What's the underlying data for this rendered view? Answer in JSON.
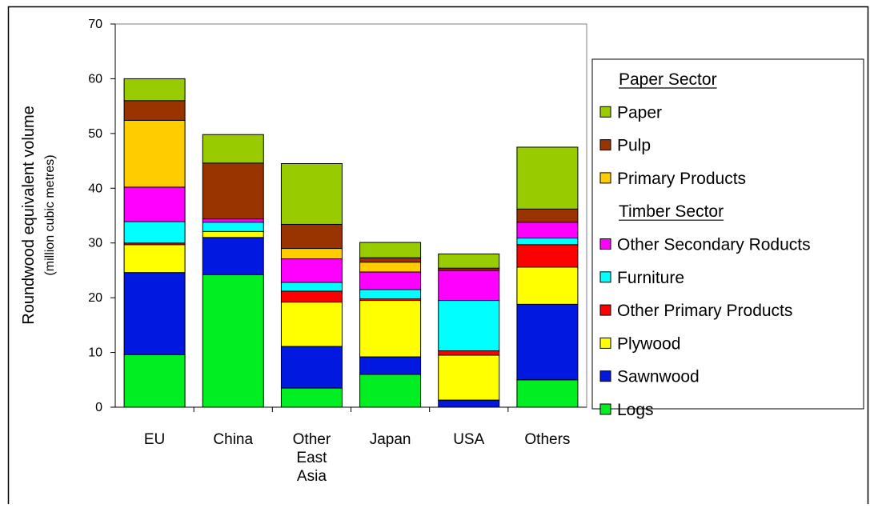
{
  "chart_data": {
    "type": "bar",
    "stacked": true,
    "categories": [
      [
        "EU"
      ],
      [
        "China"
      ],
      [
        "Other",
        "East",
        "Asia"
      ],
      [
        "Japan"
      ],
      [
        "USA"
      ],
      [
        "Others"
      ]
    ],
    "ylabel": "Roundwood equivalent volume",
    "ylabel_sub": "(million cubic metres)",
    "ylim": [
      0,
      70
    ],
    "yticks": [
      0,
      10,
      20,
      30,
      40,
      50,
      60,
      70
    ],
    "grid": false,
    "legend_position": "right",
    "series": [
      {
        "name": "Logs",
        "color": "#00ee22",
        "values": [
          9.6,
          24.2,
          3.5,
          6.0,
          0.0,
          5.0
        ]
      },
      {
        "name": "Sawnwood",
        "color": "#0018e0",
        "values": [
          15.0,
          6.8,
          7.6,
          3.2,
          1.3,
          13.8
        ]
      },
      {
        "name": "Plywood",
        "color": "#ffff00",
        "values": [
          5.1,
          1.1,
          8.1,
          10.3,
          8.2,
          6.8
        ]
      },
      {
        "name": "Other Primary Products",
        "color": "#ff0000",
        "values": [
          0.3,
          0.0,
          2.0,
          0.3,
          0.8,
          4.1
        ]
      },
      {
        "name": "Furniture",
        "color": "#00ffff",
        "values": [
          3.9,
          1.7,
          1.6,
          1.7,
          9.2,
          1.2
        ]
      },
      {
        "name": "Other Secondary Roducts",
        "color": "#ff00ff",
        "values": [
          6.3,
          0.6,
          4.3,
          3.2,
          5.5,
          2.9
        ]
      },
      {
        "name": "Primary Products",
        "color": "#ffcc00",
        "values": [
          12.2,
          0.0,
          1.9,
          1.8,
          0.0,
          0.0
        ]
      },
      {
        "name": "Pulp",
        "color": "#993300",
        "values": [
          3.6,
          10.2,
          4.4,
          0.8,
          0.4,
          2.4
        ]
      },
      {
        "name": "Paper",
        "color": "#99cc00",
        "values": [
          4.0,
          5.2,
          11.1,
          2.8,
          2.6,
          11.3
        ]
      }
    ],
    "legend": [
      {
        "kind": "header",
        "text": "Paper Sector"
      },
      {
        "kind": "item",
        "series": 8
      },
      {
        "kind": "item",
        "series": 7
      },
      {
        "kind": "item",
        "series": 6
      },
      {
        "kind": "header",
        "text": "Timber Sector"
      },
      {
        "kind": "item",
        "series": 5
      },
      {
        "kind": "item",
        "series": 4
      },
      {
        "kind": "item",
        "series": 3
      },
      {
        "kind": "item",
        "series": 2
      },
      {
        "kind": "item",
        "series": 1
      },
      {
        "kind": "item",
        "series": 0
      }
    ]
  }
}
